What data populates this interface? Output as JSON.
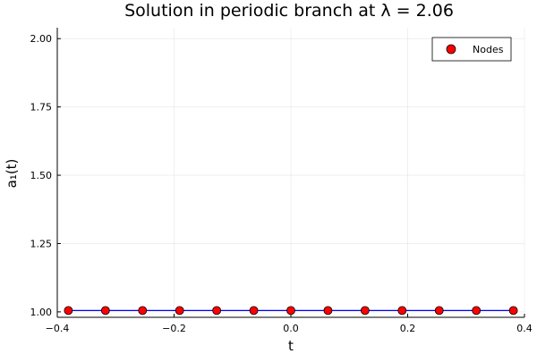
{
  "chart_data": {
    "type": "scatter",
    "title": "Solution in periodic branch at λ = 2.06",
    "xlabel": "t",
    "ylabel": "a₁(t)",
    "xlim": [
      -0.4,
      0.4
    ],
    "ylim": [
      0.98,
      2.04
    ],
    "xticks": [
      -0.4,
      -0.2,
      0.0,
      0.2,
      0.4
    ],
    "xtick_labels": [
      "−0.4",
      "−0.2",
      "0.0",
      "0.2",
      "0.4"
    ],
    "yticks": [
      1.0,
      1.25,
      1.5,
      1.75,
      2.0
    ],
    "ytick_labels": [
      "1.00",
      "1.25",
      "1.50",
      "1.75",
      "2.00"
    ],
    "grid": true,
    "legend": {
      "position": "top-right",
      "entries": [
        "Nodes"
      ]
    },
    "series": [
      {
        "kind": "line",
        "color": "#0000ff",
        "x": [
          -0.381,
          0.381
        ],
        "y": [
          1.005,
          1.005
        ]
      },
      {
        "name": "Nodes",
        "kind": "scatter",
        "color": "#ff0000",
        "x": [
          -0.381,
          -0.3175,
          -0.254,
          -0.1905,
          -0.127,
          -0.0635,
          0.0,
          0.0635,
          0.127,
          0.1905,
          0.254,
          0.3175,
          0.381
        ],
        "y": [
          1.005,
          1.005,
          1.005,
          1.005,
          1.005,
          1.005,
          1.005,
          1.005,
          1.005,
          1.005,
          1.005,
          1.005,
          1.005
        ]
      }
    ]
  }
}
